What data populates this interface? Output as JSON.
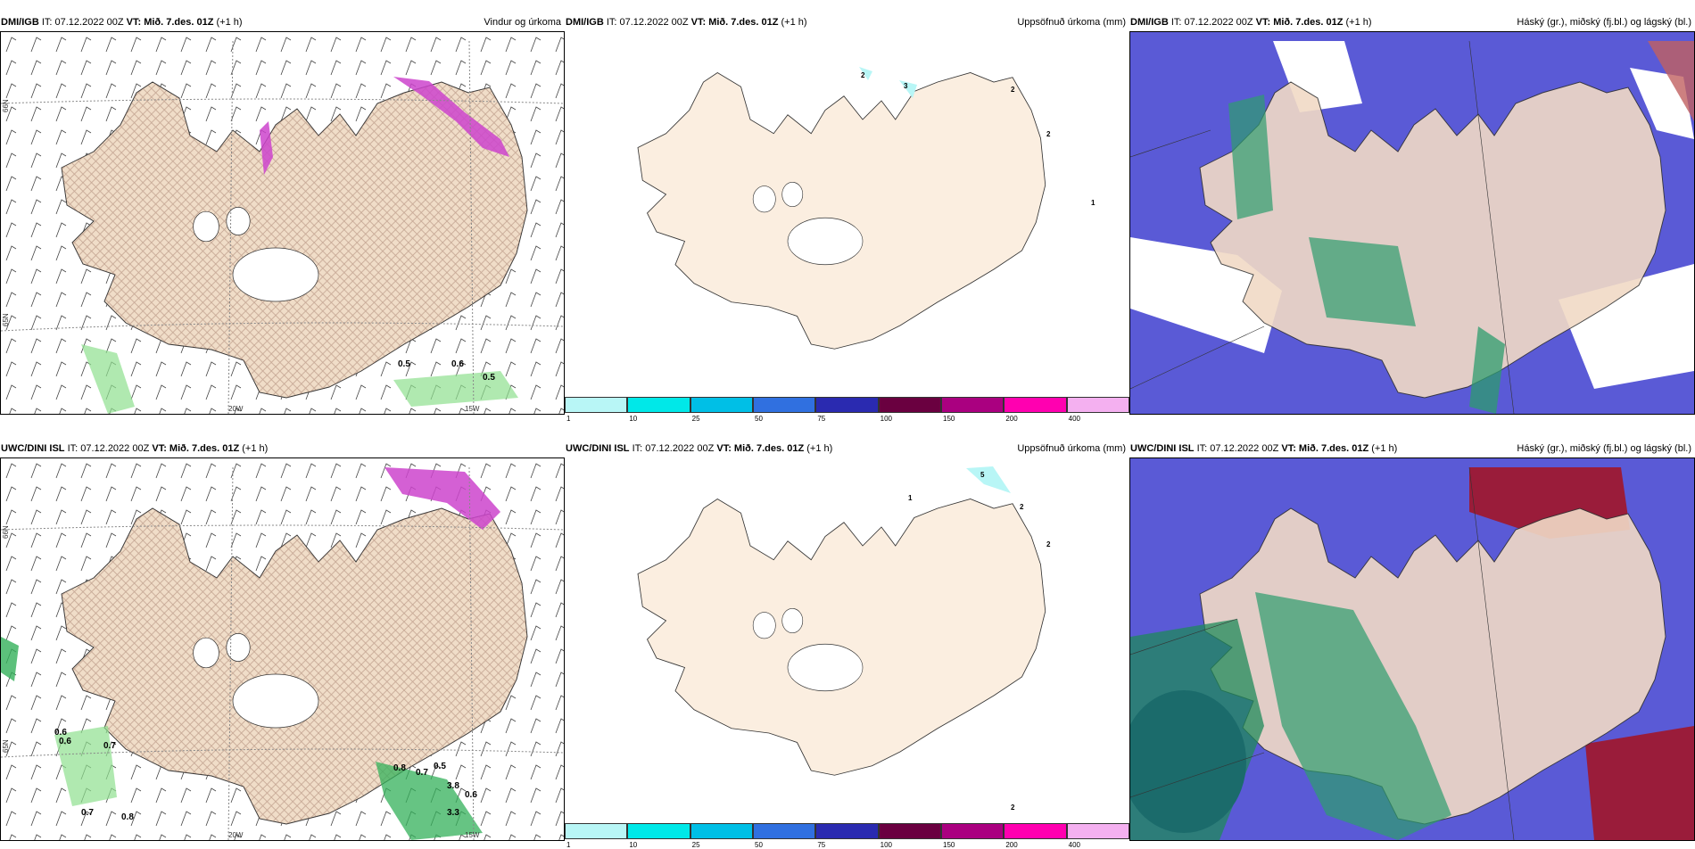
{
  "colors": {
    "land": "#f8e4d2",
    "land_light": "#fcefe2",
    "ice": "#ffffff",
    "hatch": "#b07f6a",
    "green": "#8ee08e",
    "magenta": "#cc44cc",
    "cloud_high": "#5a5ad6",
    "cloud_mid": "#2d9c6e",
    "cloud_low": "#1f8a5a"
  },
  "rows": [
    {
      "wind": {
        "model": "DMI/IGB",
        "meta": "IT: 07.12.2022 00Z",
        "vt": "VT: Mið. 7.des. 01Z",
        "lead": "(+1 h)",
        "title": "Vindur og úrkoma",
        "labels": [
          "0.5",
          "0.6",
          "0.5"
        ],
        "coords": [
          "66N",
          "65N",
          "20W",
          "15W"
        ]
      },
      "precip": {
        "model": "DMI/IGB",
        "meta": "IT: 07.12.2022 00Z",
        "vt": "VT: Mið. 7.des. 01Z",
        "lead": "(+1 h)",
        "title": "Uppsöfnuð úrkoma (mm)",
        "labels": [
          "2",
          "3",
          "2",
          "2",
          "1"
        ]
      },
      "cloud": {
        "model": "DMI/IGB",
        "meta": "IT: 07.12.2022 00Z",
        "vt": "VT: Mið. 7.des. 01Z",
        "lead": "(+1 h)",
        "title": "Háský (gr.), miðský (fj.bl.) og lágský (bl.)"
      }
    },
    {
      "wind": {
        "model": "UWC/DINI ISL",
        "meta": "IT: 07.12.2022 00Z",
        "vt": "VT: Mið. 7.des. 01Z",
        "lead": "(+1 h)",
        "title": "",
        "labels": [
          "0.6",
          "0.6",
          "0.7",
          "0.7",
          "0.8",
          "0.8",
          "0.7",
          "0.5",
          "3.8",
          "0.6",
          "3.3"
        ],
        "coords": [
          "66N",
          "65N",
          "20W",
          "15W"
        ]
      },
      "precip": {
        "model": "UWC/DINI ISL",
        "meta": "IT: 07.12.2022 00Z",
        "vt": "VT: Mið. 7.des. 01Z",
        "lead": "(+1 h)",
        "title": "Uppsöfnuð úrkoma (mm)",
        "labels": [
          "5",
          "1",
          "2",
          "2",
          "2"
        ]
      },
      "cloud": {
        "model": "UWC/DINI ISL",
        "meta": "IT: 07.12.2022 00Z",
        "vt": "VT: Mið. 7.des. 01Z",
        "lead": "(+1 h)",
        "title": "Háský (gr.), miðský (fj.bl.) og lágský (bl.)"
      }
    }
  ],
  "colorbar": {
    "ticks": [
      "1",
      "10",
      "25",
      "50",
      "75",
      "100",
      "150",
      "200",
      "400"
    ],
    "colors": [
      "#b8f6f6",
      "#00e8e8",
      "#00bfe6",
      "#3070e0",
      "#2a2ab0",
      "#6a0040",
      "#aa0080",
      "#ff00b0",
      "#f4b0f0"
    ]
  }
}
